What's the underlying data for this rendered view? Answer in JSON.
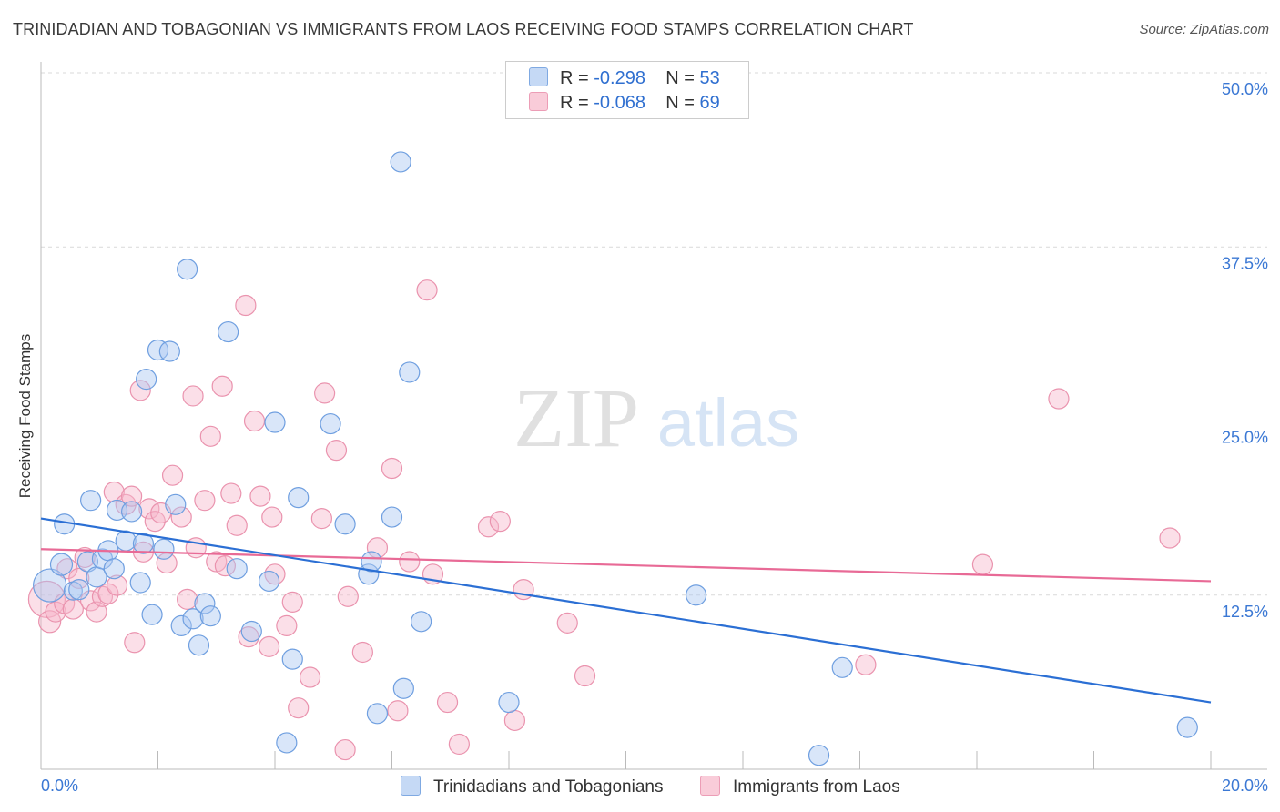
{
  "title": "TRINIDADIAN AND TOBAGONIAN VS IMMIGRANTS FROM LAOS RECEIVING FOOD STAMPS CORRELATION CHART",
  "source": "Source: ZipAtlas.com",
  "watermark": {
    "zip": "ZIP",
    "atlas": "atlas"
  },
  "legend": {
    "r_label": "R =",
    "n_label": "N =",
    "rows": [
      {
        "r": "-0.298",
        "n": "53"
      },
      {
        "r": "-0.068",
        "n": "69"
      }
    ]
  },
  "bottom_legend": [
    "Trinidadians and Tobagonians",
    "Immigrants from Laos"
  ],
  "colors": {
    "blue_fill": "#aac8f2",
    "blue_stroke": "#6f9fe0",
    "blue_line": "#2b6fd4",
    "pink_fill": "#f7b9cc",
    "pink_stroke": "#ea93ae",
    "pink_line": "#e86a96",
    "grid": "#d9d9d9",
    "tick_label": "#3b78d4"
  },
  "chart_data": {
    "type": "scatter",
    "title": "TRINIDADIAN AND TOBAGONIAN VS IMMIGRANTS FROM LAOS RECEIVING FOOD STAMPS CORRELATION CHART",
    "xlabel": "",
    "ylabel": "Receiving Food Stamps",
    "xlim": [
      0,
      20
    ],
    "ylim": [
      0,
      50
    ],
    "x_tick_labels": [
      "0.0%",
      "20.0%"
    ],
    "y_ticks": [
      12.5,
      25.0,
      37.5,
      50.0
    ],
    "y_tick_labels": [
      "12.5%",
      "25.0%",
      "37.5%",
      "50.0%"
    ],
    "grid": true,
    "legend_position": "top-center",
    "series": [
      {
        "name": "Trinidadians and Tobagonians",
        "r": -0.298,
        "n": 53,
        "trend": [
          [
            0,
            18.0
          ],
          [
            20,
            4.8
          ]
        ],
        "points": [
          [
            0.15,
            13.2,
            18
          ],
          [
            0.35,
            14.7,
            12
          ],
          [
            0.4,
            17.6,
            11
          ],
          [
            0.55,
            12.8,
            10
          ],
          [
            0.65,
            12.9,
            11
          ],
          [
            0.8,
            14.9,
            11
          ],
          [
            0.85,
            19.3,
            11
          ],
          [
            0.95,
            13.8,
            11
          ],
          [
            1.05,
            15.1,
            11
          ],
          [
            1.15,
            15.7,
            11
          ],
          [
            1.25,
            14.4,
            11
          ],
          [
            1.3,
            18.6,
            11
          ],
          [
            1.45,
            16.4,
            11
          ],
          [
            1.55,
            18.5,
            11
          ],
          [
            1.7,
            13.4,
            11
          ],
          [
            1.75,
            16.2,
            11
          ],
          [
            1.8,
            28.0,
            11
          ],
          [
            1.9,
            11.1,
            11
          ],
          [
            2.0,
            30.1,
            11
          ],
          [
            2.1,
            15.8,
            11
          ],
          [
            2.2,
            30.0,
            11
          ],
          [
            2.3,
            19.0,
            11
          ],
          [
            2.4,
            10.3,
            11
          ],
          [
            2.5,
            35.9,
            11
          ],
          [
            2.6,
            10.8,
            11
          ],
          [
            2.7,
            8.9,
            11
          ],
          [
            2.8,
            11.9,
            11
          ],
          [
            2.9,
            11.0,
            11
          ],
          [
            3.2,
            31.4,
            11
          ],
          [
            3.35,
            14.4,
            11
          ],
          [
            3.6,
            9.9,
            11
          ],
          [
            3.9,
            13.5,
            11
          ],
          [
            4.0,
            24.9,
            11
          ],
          [
            4.2,
            1.9,
            11
          ],
          [
            4.3,
            7.9,
            11
          ],
          [
            4.4,
            19.5,
            11
          ],
          [
            4.95,
            24.8,
            11
          ],
          [
            5.2,
            17.6,
            11
          ],
          [
            5.6,
            14.0,
            11
          ],
          [
            5.65,
            14.9,
            11
          ],
          [
            5.75,
            4.0,
            11
          ],
          [
            6.0,
            18.1,
            11
          ],
          [
            6.2,
            5.8,
            11
          ],
          [
            6.15,
            43.6,
            11
          ],
          [
            6.3,
            28.5,
            11
          ],
          [
            6.5,
            10.6,
            11
          ],
          [
            8.0,
            4.8,
            11
          ],
          [
            11.2,
            12.5,
            11
          ],
          [
            13.3,
            1.0,
            11
          ],
          [
            13.7,
            7.3,
            11
          ],
          [
            19.6,
            3.0,
            11
          ],
          [
            4.4,
            13.4,
            0
          ],
          [
            2.7,
            10.9,
            0
          ]
        ]
      },
      {
        "name": "Immigrants from Laos",
        "r": -0.068,
        "n": 69,
        "trend": [
          [
            0,
            15.8
          ],
          [
            20,
            13.5
          ]
        ],
        "points": [
          [
            0.1,
            12.2,
            20
          ],
          [
            0.15,
            10.6,
            12
          ],
          [
            0.25,
            11.3,
            11
          ],
          [
            0.4,
            11.9,
            11
          ],
          [
            0.45,
            14.4,
            11
          ],
          [
            0.55,
            11.5,
            11
          ],
          [
            0.65,
            13.7,
            11
          ],
          [
            0.75,
            15.2,
            11
          ],
          [
            0.85,
            12.1,
            11
          ],
          [
            0.95,
            11.3,
            11
          ],
          [
            1.05,
            12.4,
            11
          ],
          [
            1.15,
            12.6,
            11
          ],
          [
            1.25,
            19.9,
            11
          ],
          [
            1.3,
            13.2,
            11
          ],
          [
            1.45,
            19.0,
            11
          ],
          [
            1.55,
            19.6,
            11
          ],
          [
            1.6,
            9.1,
            11
          ],
          [
            1.7,
            27.2,
            11
          ],
          [
            1.75,
            15.6,
            11
          ],
          [
            1.85,
            18.7,
            11
          ],
          [
            1.95,
            17.8,
            11
          ],
          [
            2.05,
            18.4,
            11
          ],
          [
            2.15,
            14.8,
            11
          ],
          [
            2.25,
            21.1,
            11
          ],
          [
            2.4,
            18.1,
            11
          ],
          [
            2.5,
            12.2,
            11
          ],
          [
            2.6,
            26.8,
            11
          ],
          [
            2.65,
            15.9,
            11
          ],
          [
            2.8,
            19.3,
            11
          ],
          [
            2.9,
            23.9,
            11
          ],
          [
            3.0,
            14.9,
            11
          ],
          [
            3.1,
            27.5,
            11
          ],
          [
            3.15,
            14.6,
            11
          ],
          [
            3.25,
            19.8,
            11
          ],
          [
            3.35,
            17.5,
            11
          ],
          [
            3.5,
            33.3,
            11
          ],
          [
            3.55,
            9.5,
            11
          ],
          [
            3.65,
            25.0,
            11
          ],
          [
            3.75,
            19.6,
            11
          ],
          [
            3.9,
            8.8,
            11
          ],
          [
            3.95,
            18.1,
            11
          ],
          [
            4.0,
            14.0,
            11
          ],
          [
            4.2,
            10.3,
            11
          ],
          [
            4.3,
            12.0,
            11
          ],
          [
            4.4,
            4.4,
            11
          ],
          [
            4.6,
            6.6,
            11
          ],
          [
            4.8,
            18.0,
            11
          ],
          [
            4.85,
            27.0,
            11
          ],
          [
            5.05,
            22.9,
            11
          ],
          [
            5.2,
            1.4,
            11
          ],
          [
            5.25,
            12.4,
            11
          ],
          [
            5.5,
            8.4,
            11
          ],
          [
            5.75,
            15.9,
            11
          ],
          [
            6.0,
            21.6,
            11
          ],
          [
            6.1,
            4.2,
            11
          ],
          [
            6.3,
            14.9,
            11
          ],
          [
            6.6,
            34.4,
            11
          ],
          [
            6.7,
            14.0,
            11
          ],
          [
            6.95,
            4.8,
            11
          ],
          [
            7.15,
            1.8,
            11
          ],
          [
            7.65,
            17.4,
            11
          ],
          [
            7.85,
            17.8,
            11
          ],
          [
            8.1,
            3.5,
            11
          ],
          [
            8.25,
            12.9,
            11
          ],
          [
            9.0,
            10.5,
            11
          ],
          [
            9.3,
            6.7,
            11
          ],
          [
            14.1,
            7.5,
            11
          ],
          [
            16.1,
            14.7,
            11
          ],
          [
            17.4,
            26.6,
            11
          ]
        ]
      }
    ],
    "extra_points": [
      [
        19.3,
        16.6,
        11,
        "Immigrants from Laos"
      ]
    ]
  }
}
